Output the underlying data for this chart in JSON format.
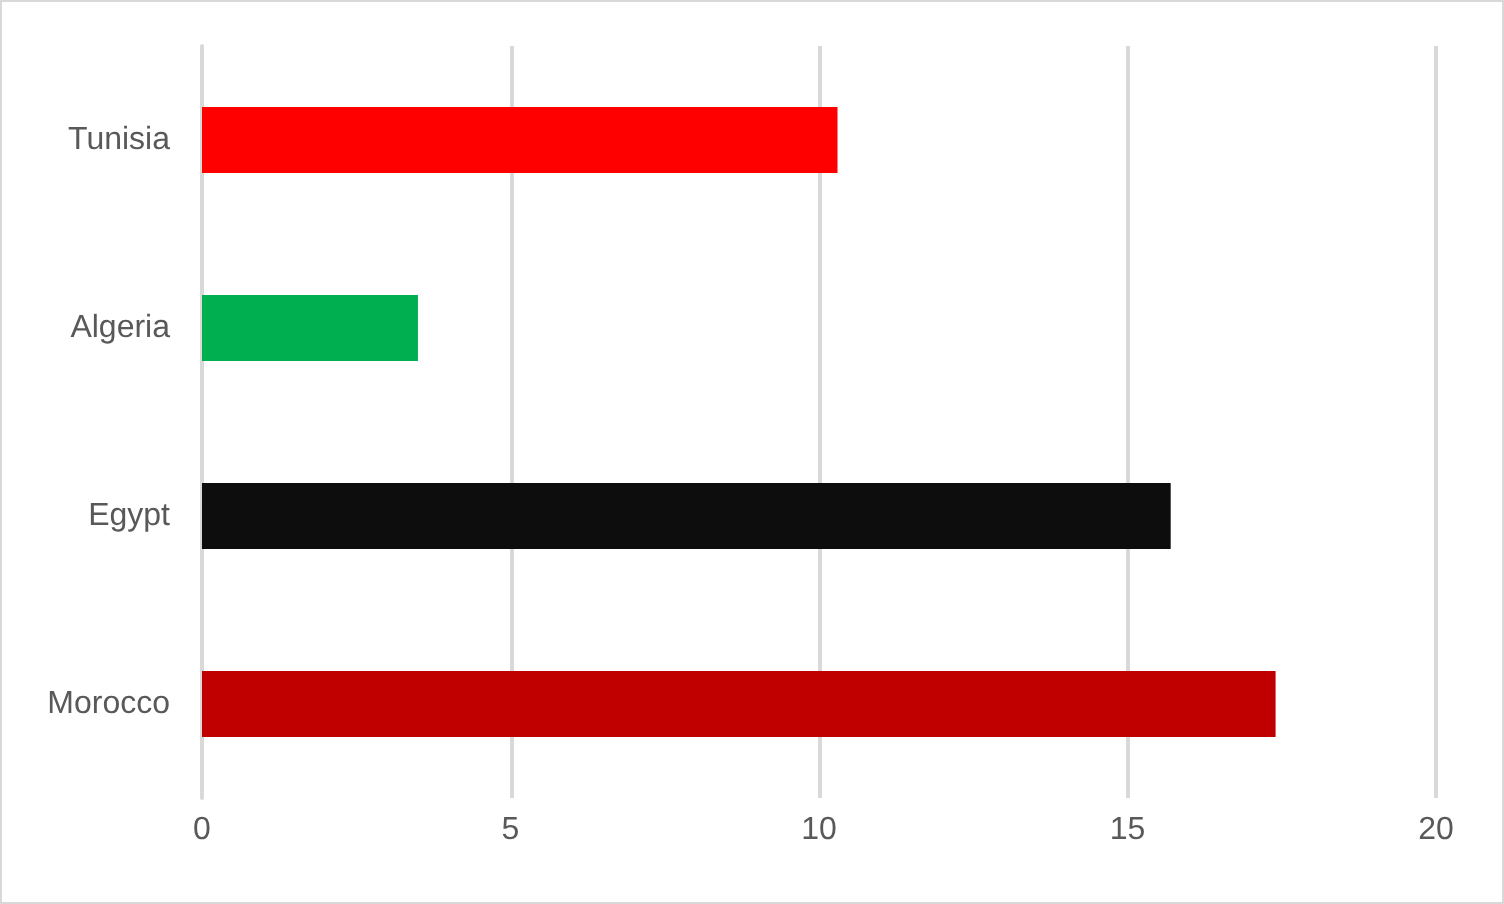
{
  "chart_data": {
    "type": "bar",
    "orientation": "horizontal",
    "categories": [
      "Tunisia",
      "Algeria",
      "Egypt",
      "Morocco"
    ],
    "values": [
      10.3,
      3.5,
      15.7,
      17.4
    ],
    "colors": [
      "#ff0000",
      "#00b050",
      "#0d0d0d",
      "#c00000"
    ],
    "xlim": [
      0,
      20
    ],
    "xticks": [
      0,
      5,
      10,
      15,
      20
    ],
    "grid": "x"
  }
}
